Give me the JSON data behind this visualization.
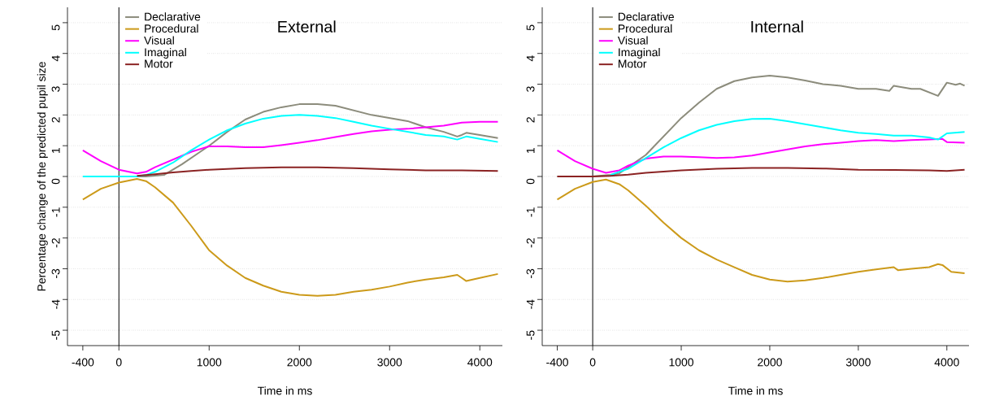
{
  "chart_data": [
    {
      "type": "line",
      "title": "External",
      "xlabel": "Time in ms",
      "ylabel": "Percentage change of the predicted pupil size",
      "xlim": [
        -570,
        4250
      ],
      "ylim": [
        -5.5,
        5.5
      ],
      "xticks": [
        -400,
        0,
        1000,
        2000,
        3000,
        4000
      ],
      "yticks": [
        -5,
        -4,
        -3,
        -2,
        -1,
        0,
        1,
        2,
        3,
        4,
        5
      ],
      "grid": "y",
      "legend": "top left",
      "marker": "none",
      "line_style": "solid",
      "ref_lines": [
        {
          "axis": "x",
          "value": 0,
          "color": "#000000"
        }
      ],
      "series": [
        {
          "name": "Declarative",
          "color": "#8c8c7c",
          "x": [
            -400,
            0,
            300,
            500,
            700,
            900,
            1000,
            1200,
            1400,
            1600,
            1800,
            2000,
            2200,
            2400,
            2600,
            2800,
            3000,
            3200,
            3400,
            3600,
            3750,
            3800,
            3850,
            4000,
            4200
          ],
          "values": [
            0,
            0,
            0,
            0.05,
            0.4,
            0.8,
            1.0,
            1.45,
            1.85,
            2.1,
            2.25,
            2.35,
            2.35,
            2.3,
            2.15,
            2.0,
            1.9,
            1.8,
            1.6,
            1.45,
            1.3,
            1.35,
            1.42,
            1.35,
            1.25
          ]
        },
        {
          "name": "Procedural",
          "color": "#cc9a1a",
          "x": [
            -400,
            -200,
            0,
            200,
            300,
            400,
            600,
            800,
            1000,
            1200,
            1400,
            1600,
            1800,
            2000,
            2200,
            2400,
            2600,
            2800,
            3000,
            3200,
            3400,
            3600,
            3750,
            3800,
            3850,
            4000,
            4200
          ],
          "values": [
            -0.75,
            -0.4,
            -0.2,
            -0.08,
            -0.15,
            -0.35,
            -0.85,
            -1.6,
            -2.4,
            -2.9,
            -3.3,
            -3.55,
            -3.75,
            -3.85,
            -3.88,
            -3.85,
            -3.75,
            -3.68,
            -3.58,
            -3.45,
            -3.35,
            -3.28,
            -3.2,
            -3.3,
            -3.4,
            -3.3,
            -3.17
          ]
        },
        {
          "name": "Visual",
          "color": "#ff00ff",
          "x": [
            -400,
            -200,
            0,
            200,
            300,
            400,
            600,
            800,
            1000,
            1200,
            1400,
            1600,
            1800,
            2000,
            2200,
            2400,
            2600,
            2800,
            3000,
            3200,
            3400,
            3600,
            3800,
            4000,
            4200
          ],
          "values": [
            0.85,
            0.5,
            0.22,
            0.1,
            0.15,
            0.3,
            0.55,
            0.8,
            0.98,
            0.98,
            0.95,
            0.95,
            1.02,
            1.1,
            1.18,
            1.28,
            1.38,
            1.47,
            1.52,
            1.55,
            1.6,
            1.65,
            1.75,
            1.78,
            1.78
          ]
        },
        {
          "name": "Imaginal",
          "color": "#00ffff",
          "x": [
            -400,
            0,
            200,
            300,
            400,
            600,
            800,
            1000,
            1200,
            1400,
            1600,
            1800,
            2000,
            2200,
            2400,
            2600,
            2800,
            3000,
            3200,
            3400,
            3600,
            3750,
            3850,
            4000,
            4200
          ],
          "values": [
            0,
            0,
            0,
            0.05,
            0.15,
            0.45,
            0.85,
            1.2,
            1.5,
            1.72,
            1.88,
            1.97,
            2.0,
            1.97,
            1.9,
            1.78,
            1.65,
            1.55,
            1.45,
            1.35,
            1.3,
            1.2,
            1.3,
            1.22,
            1.12
          ]
        },
        {
          "name": "Motor",
          "color": "#8b2323",
          "x": [
            200,
            400,
            600,
            800,
            1000,
            1400,
            1800,
            2200,
            2600,
            3000,
            3400,
            3800,
            4200
          ],
          "values": [
            0.02,
            0.07,
            0.13,
            0.18,
            0.22,
            0.27,
            0.3,
            0.3,
            0.27,
            0.23,
            0.2,
            0.2,
            0.18
          ]
        }
      ]
    },
    {
      "type": "line",
      "title": "Internal",
      "xlabel": "Time in ms",
      "xlim": [
        -570,
        4250
      ],
      "ylim": [
        -5.5,
        5.5
      ],
      "xticks": [
        -400,
        0,
        1000,
        2000,
        3000,
        4000
      ],
      "yticks": [
        -5,
        -4,
        -3,
        -2,
        -1,
        0,
        1,
        2,
        3,
        4,
        5
      ],
      "grid": "y",
      "legend": "top left",
      "marker": "none",
      "line_style": "solid",
      "ref_lines": [
        {
          "axis": "x",
          "value": 0,
          "color": "#000000"
        }
      ],
      "series": [
        {
          "name": "Declarative",
          "color": "#8c8c7c",
          "x": [
            -400,
            0,
            200,
            300,
            400,
            600,
            800,
            1000,
            1200,
            1400,
            1600,
            1800,
            2000,
            2200,
            2400,
            2600,
            2800,
            3000,
            3200,
            3350,
            3400,
            3600,
            3700,
            3900,
            4000,
            4100,
            4150,
            4200
          ],
          "values": [
            0,
            0,
            0.05,
            0.1,
            0.3,
            0.7,
            1.3,
            1.9,
            2.4,
            2.85,
            3.1,
            3.22,
            3.28,
            3.22,
            3.12,
            3.0,
            2.95,
            2.85,
            2.85,
            2.78,
            2.95,
            2.85,
            2.85,
            2.62,
            3.05,
            2.98,
            3.02,
            2.95
          ]
        },
        {
          "name": "Procedural",
          "color": "#cc9a1a",
          "x": [
            -400,
            -200,
            0,
            150,
            300,
            400,
            600,
            800,
            1000,
            1200,
            1400,
            1600,
            1800,
            2000,
            2200,
            2400,
            2600,
            2800,
            3000,
            3200,
            3400,
            3450,
            3600,
            3800,
            3900,
            3950,
            4050,
            4200
          ],
          "values": [
            -0.75,
            -0.4,
            -0.18,
            -0.1,
            -0.25,
            -0.45,
            -0.95,
            -1.5,
            -2.0,
            -2.4,
            -2.7,
            -2.95,
            -3.2,
            -3.35,
            -3.42,
            -3.38,
            -3.3,
            -3.2,
            -3.1,
            -3.02,
            -2.95,
            -3.05,
            -3.0,
            -2.95,
            -2.85,
            -2.88,
            -3.1,
            -3.15
          ]
        },
        {
          "name": "Visual",
          "color": "#ff00ff",
          "x": [
            -400,
            -200,
            0,
            150,
            300,
            400,
            600,
            800,
            1000,
            1200,
            1400,
            1600,
            1800,
            2000,
            2200,
            2400,
            2600,
            2800,
            3000,
            3200,
            3400,
            3600,
            3800,
            3950,
            4000,
            4200
          ],
          "values": [
            0.85,
            0.5,
            0.25,
            0.12,
            0.2,
            0.35,
            0.58,
            0.65,
            0.65,
            0.63,
            0.6,
            0.62,
            0.68,
            0.78,
            0.88,
            0.98,
            1.05,
            1.1,
            1.15,
            1.18,
            1.15,
            1.18,
            1.2,
            1.22,
            1.12,
            1.1
          ]
        },
        {
          "name": "Imaginal",
          "color": "#00ffff",
          "x": [
            200,
            400,
            600,
            800,
            1000,
            1200,
            1400,
            1600,
            1800,
            2000,
            2200,
            2400,
            2600,
            2800,
            3000,
            3200,
            3400,
            3600,
            3800,
            3900,
            3950,
            4000,
            4200
          ],
          "values": [
            0.05,
            0.25,
            0.6,
            0.95,
            1.25,
            1.5,
            1.68,
            1.8,
            1.87,
            1.88,
            1.8,
            1.7,
            1.6,
            1.5,
            1.42,
            1.38,
            1.33,
            1.33,
            1.27,
            1.2,
            1.3,
            1.4,
            1.45
          ]
        },
        {
          "name": "Motor",
          "color": "#8b2323",
          "x": [
            -400,
            0,
            200,
            400,
            600,
            800,
            1000,
            1400,
            1800,
            2200,
            2600,
            3000,
            3400,
            3800,
            4000,
            4200
          ],
          "values": [
            0,
            0,
            0.02,
            0.06,
            0.12,
            0.16,
            0.2,
            0.25,
            0.28,
            0.28,
            0.26,
            0.22,
            0.21,
            0.2,
            0.18,
            0.22
          ]
        }
      ]
    }
  ]
}
